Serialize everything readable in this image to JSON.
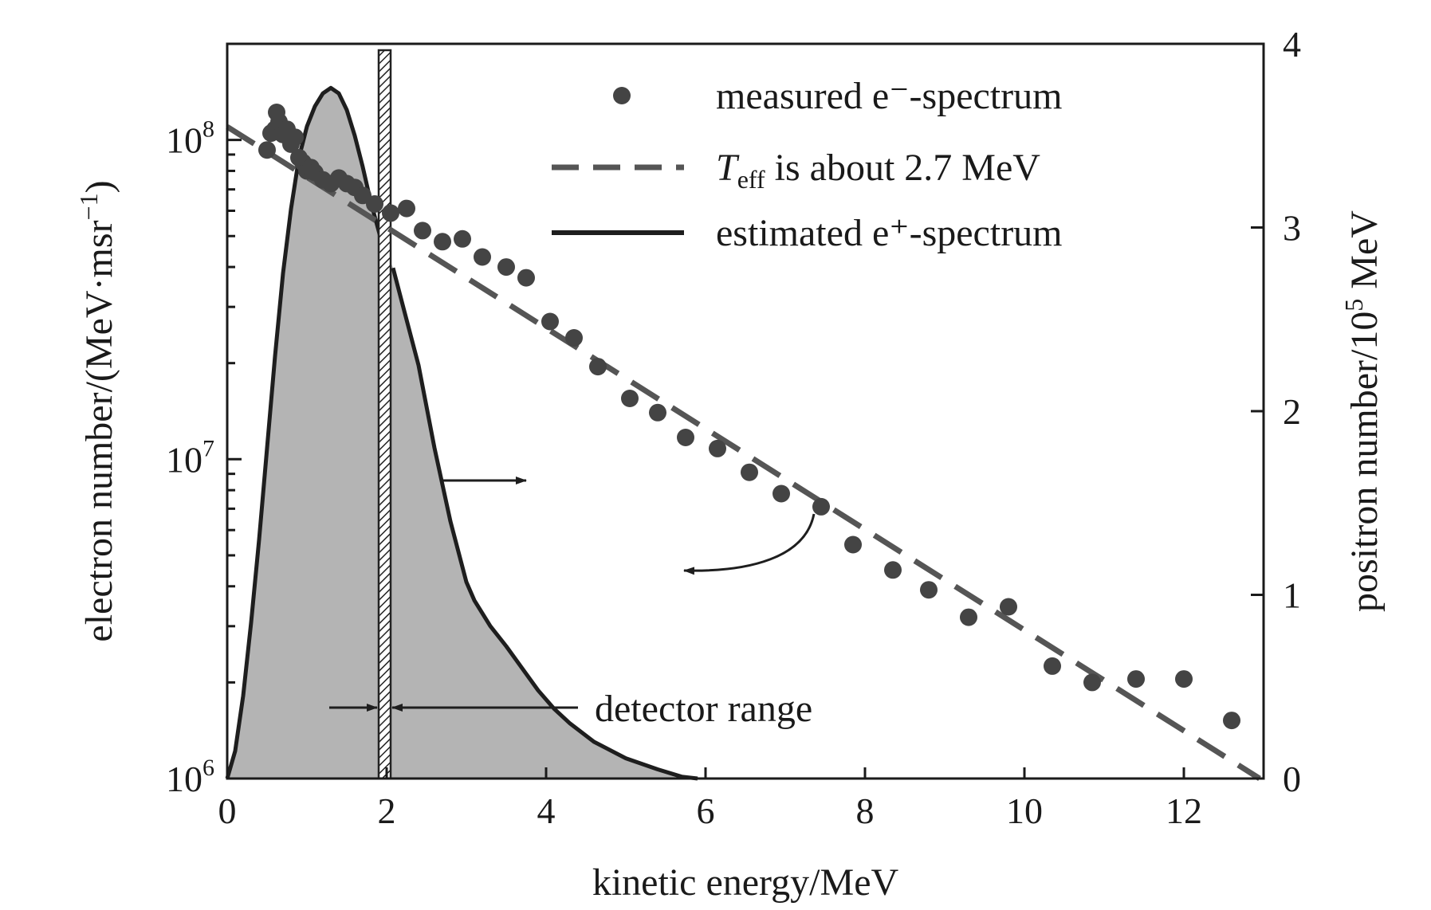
{
  "chart_data": {
    "type": "scatter",
    "x": {
      "label": "kinetic energy/MeV",
      "range": [
        0,
        13
      ],
      "ticks": [
        0,
        2,
        4,
        6,
        8,
        10,
        12
      ],
      "tick_labels": [
        "0",
        "2",
        "4",
        "6",
        "8",
        "10",
        "12"
      ]
    },
    "y_left": {
      "label_main": "electron number/(MeV·msr",
      "label_sup": "−1",
      "label_close": ")",
      "scale": "log",
      "range": [
        1000000,
        200000000
      ],
      "major_ticks": [
        1000000,
        10000000,
        100000000
      ],
      "tick_labels": [
        {
          "base": "10",
          "exp": "6"
        },
        {
          "base": "10",
          "exp": "7"
        },
        {
          "base": "10",
          "exp": "8"
        }
      ]
    },
    "y_right": {
      "label_main": "positron number/10",
      "label_sup": "5",
      "label_close": " MeV",
      "scale": "linear",
      "range": [
        0,
        4
      ],
      "ticks": [
        0,
        1,
        2,
        3,
        4
      ],
      "tick_labels": [
        "0",
        "1",
        "2",
        "3",
        "4"
      ]
    },
    "series": [
      {
        "name": "measured e⁻-spectrum",
        "kind": "scatter",
        "axis": "left",
        "color": "#444444",
        "points": [
          [
            0.5,
            93000000
          ],
          [
            0.55,
            105000000
          ],
          [
            0.6,
            108000000
          ],
          [
            0.62,
            122000000
          ],
          [
            0.65,
            114000000
          ],
          [
            0.7,
            104000000
          ],
          [
            0.75,
            108000000
          ],
          [
            0.8,
            97000000
          ],
          [
            0.85,
            102000000
          ],
          [
            0.9,
            88000000
          ],
          [
            0.95,
            85000000
          ],
          [
            1.0,
            80000000
          ],
          [
            1.05,
            82000000
          ],
          [
            1.1,
            79000000
          ],
          [
            1.2,
            75000000
          ],
          [
            1.3,
            73000000
          ],
          [
            1.4,
            76000000
          ],
          [
            1.5,
            73000000
          ],
          [
            1.6,
            71000000
          ],
          [
            1.7,
            67000000
          ],
          [
            1.85,
            63000000
          ],
          [
            2.05,
            59000000
          ],
          [
            2.25,
            61000000
          ],
          [
            2.45,
            52000000
          ],
          [
            2.7,
            48000000
          ],
          [
            2.95,
            49000000
          ],
          [
            3.2,
            43000000
          ],
          [
            3.5,
            40000000
          ],
          [
            3.75,
            37000000
          ],
          [
            4.05,
            27000000
          ],
          [
            4.35,
            24000000
          ],
          [
            4.65,
            19500000
          ],
          [
            5.05,
            15500000
          ],
          [
            5.4,
            14000000
          ],
          [
            5.75,
            11700000
          ],
          [
            6.15,
            10800000
          ],
          [
            6.55,
            9100000
          ],
          [
            6.95,
            7800000
          ],
          [
            7.45,
            7100000
          ],
          [
            7.85,
            5400000
          ],
          [
            8.35,
            4500000
          ],
          [
            8.8,
            3900000
          ],
          [
            9.3,
            3200000
          ],
          [
            9.8,
            3450000
          ],
          [
            10.35,
            2250000
          ],
          [
            10.85,
            2000000
          ],
          [
            11.4,
            2050000
          ],
          [
            12.0,
            2050000
          ],
          [
            12.6,
            1520000
          ]
        ]
      },
      {
        "name_main": "T",
        "name_sub": "eff",
        "name_rest": " is about 2.7 MeV",
        "kind": "line",
        "style": "dashed",
        "axis": "left",
        "color": "#555555",
        "points": [
          [
            0,
            110000000
          ],
          [
            12.95,
            1000000
          ]
        ]
      },
      {
        "name": "estimated e⁺-spectrum",
        "kind": "area",
        "axis": "right",
        "color": "#1e1e1e",
        "fill": "#b4b4b4",
        "points": [
          [
            0.0,
            0.0
          ],
          [
            0.1,
            0.15
          ],
          [
            0.2,
            0.45
          ],
          [
            0.3,
            0.85
          ],
          [
            0.4,
            1.3
          ],
          [
            0.5,
            1.8
          ],
          [
            0.6,
            2.3
          ],
          [
            0.7,
            2.75
          ],
          [
            0.8,
            3.1
          ],
          [
            0.9,
            3.38
          ],
          [
            1.0,
            3.55
          ],
          [
            1.1,
            3.66
          ],
          [
            1.2,
            3.73
          ],
          [
            1.3,
            3.76
          ],
          [
            1.4,
            3.73
          ],
          [
            1.5,
            3.64
          ],
          [
            1.6,
            3.5
          ],
          [
            1.7,
            3.33
          ],
          [
            1.8,
            3.14
          ],
          [
            1.92,
            2.95
          ],
          [
            2.08,
            2.78
          ],
          [
            2.2,
            2.58
          ],
          [
            2.4,
            2.25
          ],
          [
            2.6,
            1.8
          ],
          [
            2.8,
            1.4
          ],
          [
            3.0,
            1.07
          ],
          [
            3.1,
            0.97
          ],
          [
            3.3,
            0.83
          ],
          [
            3.5,
            0.72
          ],
          [
            3.7,
            0.6
          ],
          [
            3.9,
            0.48
          ],
          [
            4.1,
            0.38
          ],
          [
            4.3,
            0.3
          ],
          [
            4.6,
            0.2
          ],
          [
            5.0,
            0.11
          ],
          [
            5.4,
            0.05
          ],
          [
            5.7,
            0.01
          ],
          [
            5.9,
            0.0
          ]
        ],
        "gap": [
          1.92,
          2.08
        ]
      }
    ],
    "annotations": {
      "detector_range": {
        "text": "detector range",
        "x_band": [
          1.9,
          2.05
        ]
      }
    },
    "legend_position": "top-right",
    "grid": false
  }
}
